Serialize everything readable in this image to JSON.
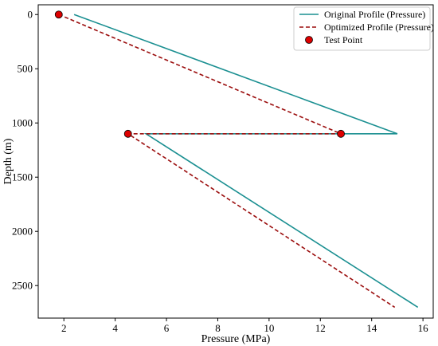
{
  "chart_data": {
    "type": "line",
    "title": "",
    "xlabel": "Pressure (MPa)",
    "ylabel": "Depth (m)",
    "xlim": [
      1.0,
      16.4
    ],
    "ylim": [
      2800,
      -90
    ],
    "y_inverted": true,
    "xticks": [
      2,
      4,
      6,
      8,
      10,
      12,
      14,
      16
    ],
    "yticks": [
      0,
      500,
      1000,
      1500,
      2000,
      2500
    ],
    "grid": false,
    "legend_position": "top-right",
    "series": [
      {
        "name": "Original Profile (Pressure)",
        "color": "#1a8f91",
        "style": "solid",
        "points": [
          [
            2.4,
            0
          ],
          [
            15.0,
            1100
          ],
          [
            5.2,
            1100
          ],
          [
            15.8,
            2700
          ]
        ]
      },
      {
        "name": "Optimized Profile (Pressure)",
        "color": "#9b0d0d",
        "style": "dashed",
        "points": [
          [
            1.8,
            0
          ],
          [
            12.8,
            1100
          ],
          [
            4.5,
            1100
          ],
          [
            14.9,
            2700
          ]
        ]
      },
      {
        "name": "Test Point",
        "color": "#dd0000",
        "style": "marker",
        "points": [
          [
            1.8,
            0
          ],
          [
            12.8,
            1100
          ],
          [
            4.5,
            1100
          ]
        ]
      }
    ]
  }
}
